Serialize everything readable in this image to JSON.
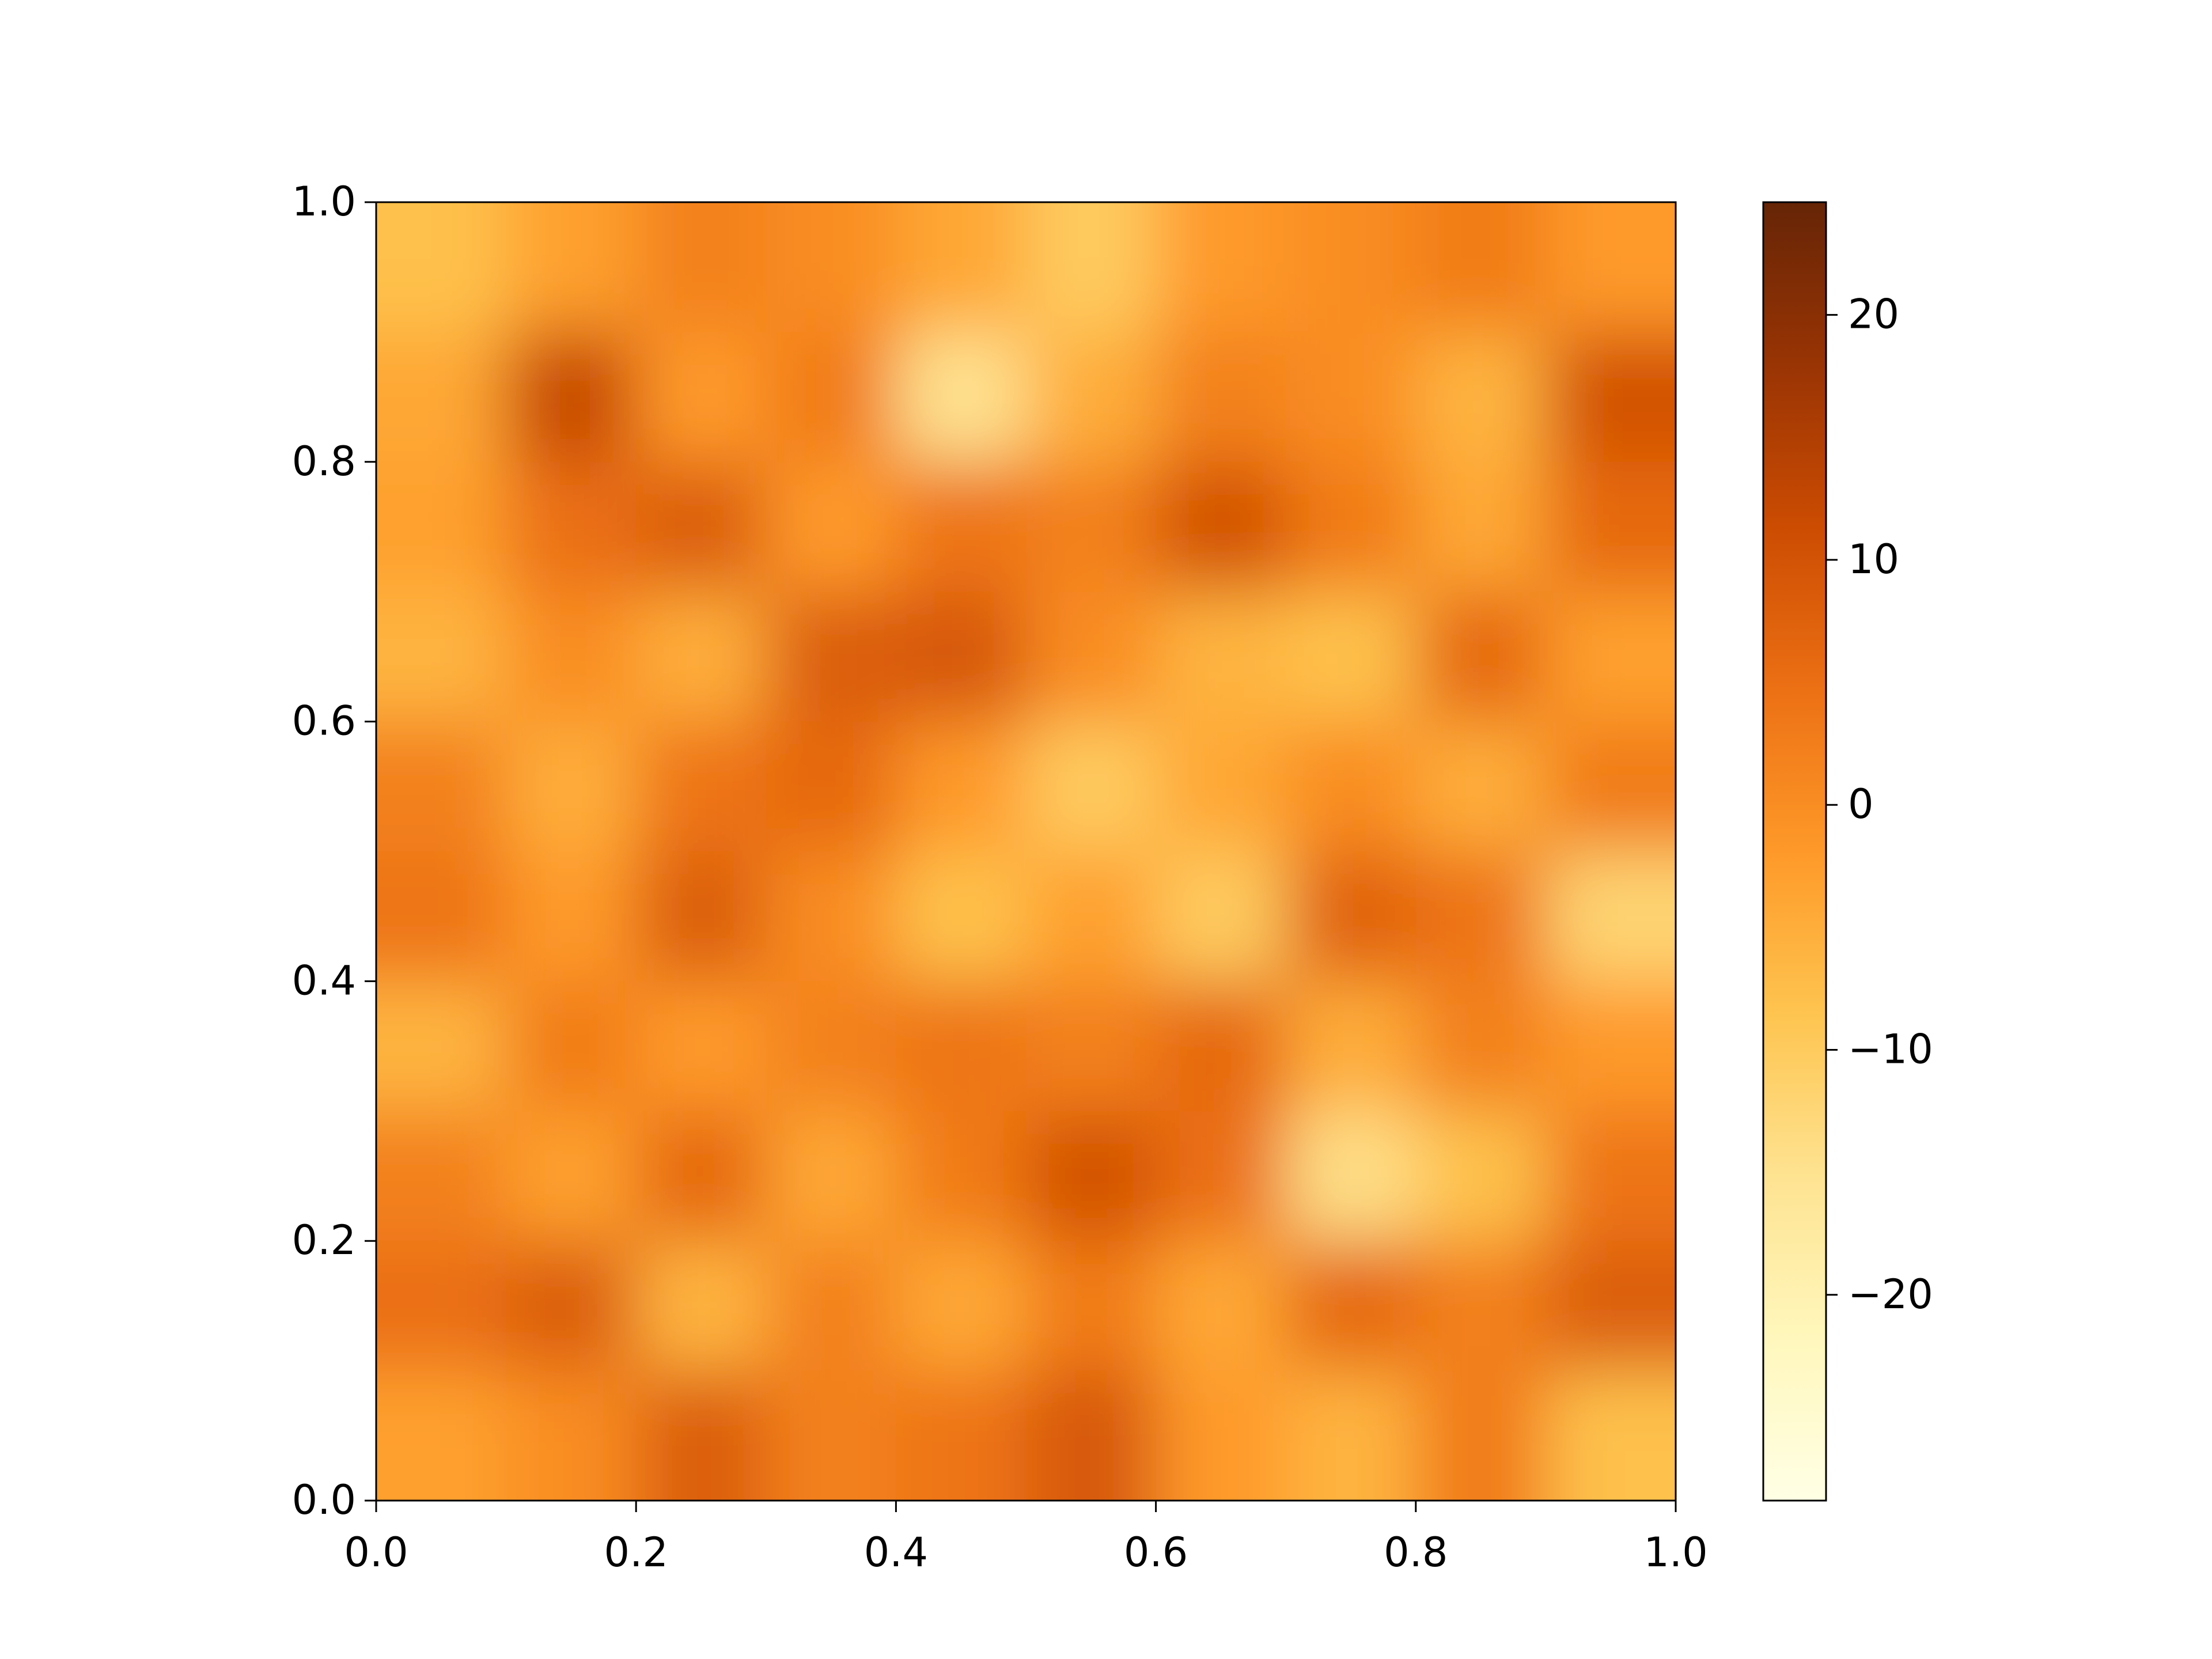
{
  "chart_data": {
    "type": "heatmap",
    "xlim": [
      0,
      1
    ],
    "ylim": [
      0,
      1
    ],
    "xticks": [
      {
        "value": 0,
        "label": "0.0"
      },
      {
        "value": 0.2,
        "label": "0.2"
      },
      {
        "value": 0.4,
        "label": "0.4"
      },
      {
        "value": 0.6,
        "label": "0.6"
      },
      {
        "value": 0.8,
        "label": "0.8"
      },
      {
        "value": 1,
        "label": "1.0"
      }
    ],
    "yticks": [
      {
        "value": 0,
        "label": "0.0"
      },
      {
        "value": 0.2,
        "label": "0.2"
      },
      {
        "value": 0.4,
        "label": "0.4"
      },
      {
        "value": 0.6,
        "label": "0.6"
      },
      {
        "value": 0.8,
        "label": "0.8"
      },
      {
        "value": 1,
        "label": "1.0"
      }
    ],
    "z": [
      [
        -8,
        -3,
        2,
        0,
        -4,
        -10,
        -2,
        0,
        3,
        -2
      ],
      [
        -4,
        12,
        -2,
        3,
        -15,
        -5,
        2,
        0,
        -6,
        10
      ],
      [
        -3,
        5,
        8,
        -2,
        4,
        2,
        10,
        3,
        -4,
        6
      ],
      [
        -6,
        0,
        -5,
        8,
        9,
        0,
        -6,
        -8,
        6,
        -3
      ],
      [
        2,
        -5,
        4,
        6,
        -2,
        -10,
        -4,
        0,
        -5,
        3
      ],
      [
        4,
        -2,
        8,
        0,
        -8,
        -3,
        -10,
        7,
        4,
        -12
      ],
      [
        -6,
        3,
        -2,
        2,
        4,
        2,
        6,
        -5,
        2,
        -2
      ],
      [
        2,
        -3,
        6,
        -4,
        3,
        10,
        5,
        -14,
        -8,
        4
      ],
      [
        5,
        8,
        -6,
        2,
        -4,
        3,
        -4,
        6,
        2,
        8
      ],
      [
        -3,
        0,
        8,
        2,
        4,
        9,
        -2,
        -6,
        3,
        -8
      ]
    ],
    "colormap": [
      "#ffffe5",
      "#fff7bc",
      "#fee391",
      "#fec44f",
      "#fe9929",
      "#ec7014",
      "#cc4c02",
      "#993404",
      "#662506"
    ],
    "clim": [
      -28.4,
      24.6
    ],
    "cticks": [
      {
        "value": -20,
        "label": "−20"
      },
      {
        "value": -10,
        "label": "−10"
      },
      0,
      10,
      20
    ]
  }
}
